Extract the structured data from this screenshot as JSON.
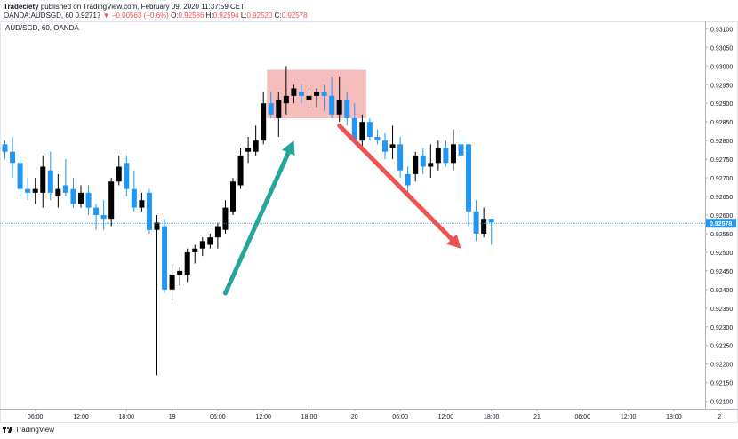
{
  "header": {
    "publisher": "Tradeciety",
    "published_text": "published on TradingView.com, February 09, 2020 11:37:59 CET",
    "symbol_line": "OANDA:AUDSGD, 60",
    "price": "0.92717",
    "change": "▼ −0.00563 (−0.6%)",
    "o_label": "O:",
    "o_value": "0.92586",
    "h_label": "H:",
    "h_value": "0.92594",
    "l_label": "L:",
    "l_value": "0.92520",
    "c_label": "C:",
    "c_value": "0.92578"
  },
  "footer": {
    "brand": "TradingView"
  },
  "colors": {
    "bull": "#000000",
    "bear": "#2196f3",
    "box_fill": "#f4a6a6",
    "arrow_up": "#26a69a",
    "arrow_down": "#ef5350",
    "price_line": "#2196f3"
  },
  "chart_data": {
    "type": "candlestick",
    "title": "AUD/SGD, 60, OANDA",
    "y_ticks": [
      "0.93100",
      "0.93050",
      "0.93000",
      "0.92950",
      "0.92900",
      "0.92850",
      "0.92800",
      "0.92750",
      "0.92700",
      "0.92650",
      "0.92600",
      "0.92550",
      "0.92500",
      "0.92450",
      "0.92400",
      "0.92350",
      "0.92300",
      "0.92250",
      "0.92200",
      "0.92150",
      "0.92100"
    ],
    "ylim": [
      0.9208,
      0.9312
    ],
    "x_ticks": [
      "06:00",
      "12:00",
      "18:00",
      "19",
      "06:00",
      "12:00",
      "18:00",
      "20",
      "06:00",
      "12:00",
      "18:00",
      "21",
      "06:00",
      "12:00",
      "18:00",
      "2"
    ],
    "last_price": "0.92578",
    "candles": [
      {
        "o": 0.9279,
        "h": 0.928,
        "l": 0.9275,
        "c": 0.9277
      },
      {
        "o": 0.9277,
        "h": 0.9281,
        "l": 0.927,
        "c": 0.9274
      },
      {
        "o": 0.9274,
        "h": 0.9276,
        "l": 0.9265,
        "c": 0.9267
      },
      {
        "o": 0.9267,
        "h": 0.927,
        "l": 0.9264,
        "c": 0.9266
      },
      {
        "o": 0.9266,
        "h": 0.927,
        "l": 0.9263,
        "c": 0.9267
      },
      {
        "o": 0.9266,
        "h": 0.9276,
        "l": 0.9262,
        "c": 0.9273
      },
      {
        "o": 0.9272,
        "h": 0.9277,
        "l": 0.9264,
        "c": 0.9266
      },
      {
        "o": 0.9265,
        "h": 0.9271,
        "l": 0.9262,
        "c": 0.9267
      },
      {
        "o": 0.9268,
        "h": 0.9275,
        "l": 0.9265,
        "c": 0.9266
      },
      {
        "o": 0.9267,
        "h": 0.927,
        "l": 0.9262,
        "c": 0.9263
      },
      {
        "o": 0.9263,
        "h": 0.9268,
        "l": 0.9262,
        "c": 0.9266
      },
      {
        "o": 0.9266,
        "h": 0.9268,
        "l": 0.926,
        "c": 0.9262
      },
      {
        "o": 0.9262,
        "h": 0.9263,
        "l": 0.9256,
        "c": 0.926
      },
      {
        "o": 0.926,
        "h": 0.9264,
        "l": 0.9256,
        "c": 0.9259
      },
      {
        "o": 0.9259,
        "h": 0.927,
        "l": 0.9257,
        "c": 0.9269
      },
      {
        "o": 0.9269,
        "h": 0.9276,
        "l": 0.9268,
        "c": 0.9273
      },
      {
        "o": 0.9274,
        "h": 0.9276,
        "l": 0.9265,
        "c": 0.9267
      },
      {
        "o": 0.9267,
        "h": 0.9272,
        "l": 0.9261,
        "c": 0.9262
      },
      {
        "o": 0.9262,
        "h": 0.9266,
        "l": 0.9261,
        "c": 0.9264
      },
      {
        "o": 0.9266,
        "h": 0.9267,
        "l": 0.9255,
        "c": 0.9256
      },
      {
        "o": 0.9256,
        "h": 0.926,
        "l": 0.9217,
        "c": 0.9258
      },
      {
        "o": 0.9257,
        "h": 0.9259,
        "l": 0.9239,
        "c": 0.924
      },
      {
        "o": 0.924,
        "h": 0.9247,
        "l": 0.9237,
        "c": 0.9244
      },
      {
        "o": 0.9244,
        "h": 0.9246,
        "l": 0.9241,
        "c": 0.9245
      },
      {
        "o": 0.9244,
        "h": 0.9251,
        "l": 0.9242,
        "c": 0.925
      },
      {
        "o": 0.925,
        "h": 0.9252,
        "l": 0.9247,
        "c": 0.9251
      },
      {
        "o": 0.9251,
        "h": 0.9254,
        "l": 0.9249,
        "c": 0.9253
      },
      {
        "o": 0.9252,
        "h": 0.9255,
        "l": 0.9251,
        "c": 0.9254
      },
      {
        "o": 0.9254,
        "h": 0.9258,
        "l": 0.9251,
        "c": 0.9257
      },
      {
        "o": 0.9256,
        "h": 0.9264,
        "l": 0.9255,
        "c": 0.9262
      },
      {
        "o": 0.9261,
        "h": 0.927,
        "l": 0.926,
        "c": 0.9269
      },
      {
        "o": 0.9268,
        "h": 0.9278,
        "l": 0.9267,
        "c": 0.9276
      },
      {
        "o": 0.9277,
        "h": 0.9281,
        "l": 0.9274,
        "c": 0.9278
      },
      {
        "o": 0.9277,
        "h": 0.9284,
        "l": 0.9276,
        "c": 0.928
      },
      {
        "o": 0.928,
        "h": 0.9293,
        "l": 0.9279,
        "c": 0.929
      },
      {
        "o": 0.929,
        "h": 0.9293,
        "l": 0.9286,
        "c": 0.9287
      },
      {
        "o": 0.9286,
        "h": 0.9293,
        "l": 0.9281,
        "c": 0.9291
      },
      {
        "o": 0.929,
        "h": 0.93,
        "l": 0.9287,
        "c": 0.9292
      },
      {
        "o": 0.9292,
        "h": 0.9295,
        "l": 0.929,
        "c": 0.9294
      },
      {
        "o": 0.9293,
        "h": 0.9295,
        "l": 0.929,
        "c": 0.9292
      },
      {
        "o": 0.9291,
        "h": 0.9294,
        "l": 0.9289,
        "c": 0.9292
      },
      {
        "o": 0.9292,
        "h": 0.9294,
        "l": 0.9289,
        "c": 0.9293
      },
      {
        "o": 0.9293,
        "h": 0.9295,
        "l": 0.9288,
        "c": 0.9292
      },
      {
        "o": 0.9292,
        "h": 0.9297,
        "l": 0.9286,
        "c": 0.9287
      },
      {
        "o": 0.9287,
        "h": 0.9297,
        "l": 0.9285,
        "c": 0.9291
      },
      {
        "o": 0.9291,
        "h": 0.9293,
        "l": 0.9284,
        "c": 0.9286
      },
      {
        "o": 0.9286,
        "h": 0.929,
        "l": 0.9279,
        "c": 0.928
      },
      {
        "o": 0.928,
        "h": 0.9287,
        "l": 0.9278,
        "c": 0.9285
      },
      {
        "o": 0.9285,
        "h": 0.9286,
        "l": 0.928,
        "c": 0.9281
      },
      {
        "o": 0.9281,
        "h": 0.9283,
        "l": 0.9279,
        "c": 0.928
      },
      {
        "o": 0.928,
        "h": 0.9282,
        "l": 0.9275,
        "c": 0.9277
      },
      {
        "o": 0.9278,
        "h": 0.9284,
        "l": 0.9275,
        "c": 0.9279
      },
      {
        "o": 0.9279,
        "h": 0.9281,
        "l": 0.927,
        "c": 0.9272
      },
      {
        "o": 0.9271,
        "h": 0.9273,
        "l": 0.9265,
        "c": 0.9268
      },
      {
        "o": 0.9271,
        "h": 0.9277,
        "l": 0.9269,
        "c": 0.9276
      },
      {
        "o": 0.9276,
        "h": 0.9278,
        "l": 0.9271,
        "c": 0.9273
      },
      {
        "o": 0.9273,
        "h": 0.9279,
        "l": 0.927,
        "c": 0.9274
      },
      {
        "o": 0.9274,
        "h": 0.928,
        "l": 0.9272,
        "c": 0.9278
      },
      {
        "o": 0.9278,
        "h": 0.928,
        "l": 0.9273,
        "c": 0.9274
      },
      {
        "o": 0.9274,
        "h": 0.9283,
        "l": 0.9272,
        "c": 0.9279
      },
      {
        "o": 0.9279,
        "h": 0.9282,
        "l": 0.9275,
        "c": 0.9276
      },
      {
        "o": 0.9279,
        "h": 0.9279,
        "l": 0.9257,
        "c": 0.9261
      },
      {
        "o": 0.9261,
        "h": 0.9264,
        "l": 0.9253,
        "c": 0.9255
      },
      {
        "o": 0.9255,
        "h": 0.9262,
        "l": 0.9254,
        "c": 0.9259
      },
      {
        "o": 0.9259,
        "h": 0.9259,
        "l": 0.9252,
        "c": 0.9258
      }
    ],
    "annotations": [
      {
        "type": "rectangle",
        "from_candle": 35,
        "to_candle": 47,
        "low": 0.9286,
        "high": 0.9299
      },
      {
        "type": "arrow",
        "direction": "up",
        "from_candle": 29,
        "from_price": 0.9239,
        "to_candle": 38,
        "to_price": 0.928
      },
      {
        "type": "arrow",
        "direction": "down",
        "from_candle": 44,
        "from_price": 0.9284,
        "to_candle": 60,
        "to_price": 0.9251
      }
    ]
  }
}
